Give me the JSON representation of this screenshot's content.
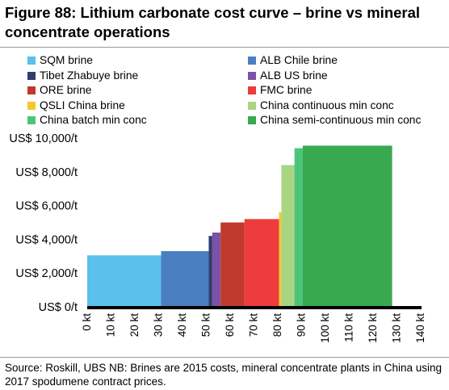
{
  "title": "Figure 88: Lithium carbonate cost curve – brine vs mineral concentrate operations",
  "source": "Source: Roskill, UBS  NB: Brines are 2015 costs, mineral concentrate plants in China using 2017 spodumene contract prices.",
  "chart_data": {
    "type": "bar",
    "subtype": "cost-curve (variable-width bars)",
    "x_unit": "kt",
    "xlim": [
      0,
      140
    ],
    "ylim": [
      0,
      10000
    ],
    "x_ticks": [
      "0 kt",
      "10 kt",
      "20 kt",
      "30 kt",
      "40 kt",
      "50 kt",
      "60 kt",
      "70 kt",
      "80 kt",
      "90 kt",
      "100 kt",
      "110 kt",
      "120 kt",
      "130 kt",
      "140 kt"
    ],
    "y_ticks": [
      "US$ 0/t",
      "US$ 2,000/t",
      "US$ 4,000/t",
      "US$ 6,000/t",
      "US$ 8,000/t",
      "US$ 10,000/t"
    ],
    "legend_position": "top",
    "grid": false,
    "series": [
      {
        "name": "SQM brine",
        "x_start": 0,
        "x_end": 31,
        "value": 3050,
        "color": "#5BC0EB"
      },
      {
        "name": "ALB Chile brine",
        "x_start": 31,
        "x_end": 51,
        "value": 3300,
        "color": "#4A7FC1"
      },
      {
        "name": "Tibet Zhabuye brine",
        "x_start": 51,
        "x_end": 52.5,
        "value": 4200,
        "color": "#2E3F6B"
      },
      {
        "name": "ALB US brine",
        "x_start": 52.5,
        "x_end": 56,
        "value": 4400,
        "color": "#7B52A6"
      },
      {
        "name": "ORE brine",
        "x_start": 56,
        "x_end": 66,
        "value": 5000,
        "color": "#C0392B"
      },
      {
        "name": "FMC brine",
        "x_start": 66,
        "x_end": 80.5,
        "value": 5200,
        "color": "#EE3B3B"
      },
      {
        "name": "QSLI China brine",
        "x_start": 80.5,
        "x_end": 81.5,
        "value": 5600,
        "color": "#F5C72E"
      },
      {
        "name": "China continuous min conc",
        "x_start": 81.5,
        "x_end": 87,
        "value": 8400,
        "color": "#A8D582"
      },
      {
        "name": "China batch min conc",
        "x_start": 87,
        "x_end": 90.5,
        "value": 9400,
        "color": "#4CC47A"
      },
      {
        "name": "China semi-continuous min conc",
        "x_start": 90.5,
        "x_end": 128,
        "value": 9550,
        "color": "#38A94E"
      }
    ]
  }
}
